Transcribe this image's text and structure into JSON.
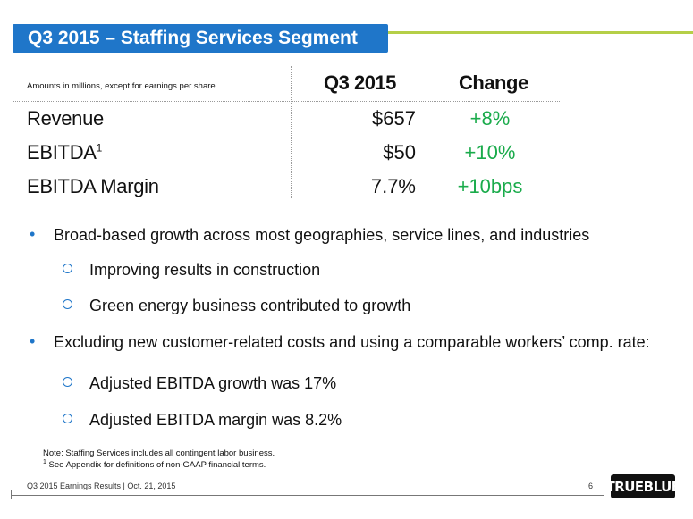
{
  "slide": {
    "title": "Q3 2015 – Staffing Services Segment"
  },
  "table": {
    "note": "Amounts in millions, except for earnings per share",
    "col_q3": "Q3 2015",
    "col_change": "Change",
    "rows": [
      {
        "label": "Revenue",
        "sup": "",
        "value": "$657",
        "change": "+8%"
      },
      {
        "label": "EBITDA",
        "sup": "1",
        "value": "$50",
        "change": "+10%"
      },
      {
        "label": "EBITDA Margin",
        "sup": "",
        "value": "7.7%",
        "change": "+10bps"
      }
    ]
  },
  "bullets": {
    "b1": "Broad-based growth across most geographies, service lines, and industries",
    "b1_sub1": "Improving results in construction",
    "b1_sub2": "Green energy business contributed to growth",
    "b2": "Excluding new customer-related costs and using a comparable workers’ comp. rate:",
    "b2_sub1": "Adjusted EBITDA growth was 17%",
    "b2_sub2": "Adjusted EBITDA margin was 8.2%"
  },
  "notes": {
    "line1": "Note: Staffing Services includes all contingent labor business.",
    "line2_sup": "1",
    "line2": " See Appendix for definitions of non-GAAP financial terms."
  },
  "footer": {
    "text": "Q3 2015 Earnings Results | Oct. 21, 2015",
    "page": "6",
    "logo": "TRUEBLUE"
  },
  "colors": {
    "accent_blue": "#1f76c9",
    "accent_green_line": "#b5cf47",
    "change_green": "#1aab4b"
  }
}
